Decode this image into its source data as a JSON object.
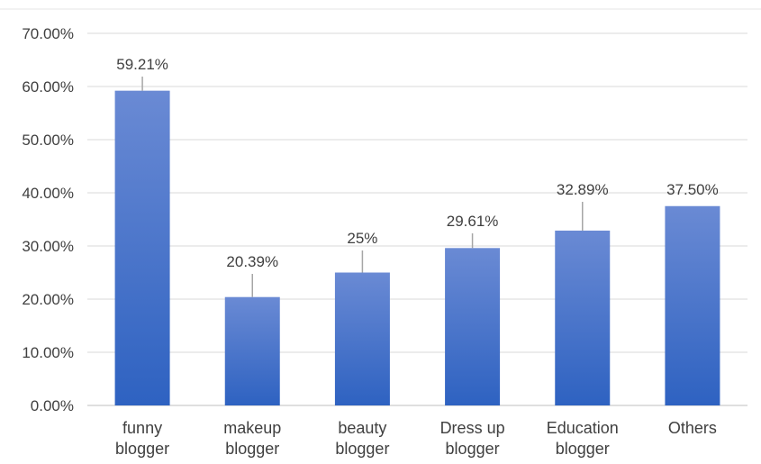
{
  "chart_data": {
    "type": "bar",
    "categories": [
      [
        "funny",
        "blogger"
      ],
      [
        "makeup",
        "blogger"
      ],
      [
        "beauty",
        "blogger"
      ],
      [
        "Dress up",
        "blogger"
      ],
      [
        "Education",
        "blogger"
      ],
      [
        "Others"
      ]
    ],
    "values": [
      59.21,
      20.39,
      25,
      29.61,
      32.89,
      37.5
    ],
    "data_labels": [
      "59.21%",
      "20.39%",
      "25%",
      "29.61%",
      "32.89%",
      "37.50%"
    ],
    "y_ticks": [
      "0.00%",
      "10.00%",
      "20.00%",
      "30.00%",
      "40.00%",
      "50.00%",
      "60.00%",
      "70.00%"
    ],
    "ylim": [
      0,
      70
    ],
    "grid": true,
    "legend": "none",
    "colors": {
      "bar_top": "#6a8ad4",
      "bar_bottom": "#2e62c1",
      "grid": "#d9d9d9",
      "axis": "#bfbfbf",
      "leader": "#a6a6a6"
    }
  }
}
